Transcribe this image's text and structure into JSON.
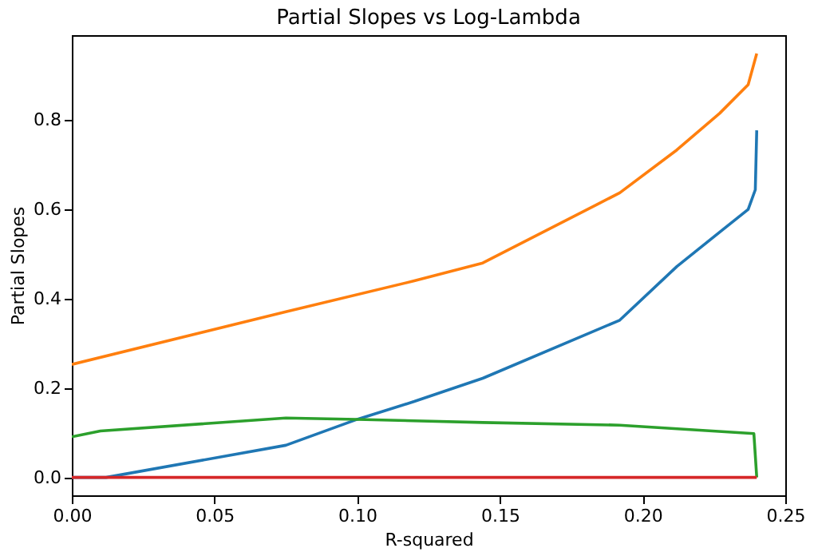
{
  "chart_data": {
    "type": "line",
    "title": "Partial Slopes vs Log-Lambda",
    "xlabel": "R-squared",
    "ylabel": "Partial Slopes",
    "xlim": [
      0,
      0.25
    ],
    "xticks": [
      {
        "value": 0,
        "label": "0.00"
      },
      {
        "value": 0.05,
        "label": "0.05"
      },
      {
        "value": 0.1,
        "label": "0.10"
      },
      {
        "value": 0.15,
        "label": "0.15"
      },
      {
        "value": 0.2,
        "label": "0.20"
      },
      {
        "value": 0.25,
        "label": "0.25"
      }
    ],
    "ylim": [
      -0.04,
      0.99
    ],
    "yticks": [
      {
        "value": 0,
        "label": "0.0"
      },
      0.2,
      0.4,
      0.6,
      0.8
    ],
    "grid": false,
    "legend": false,
    "line_style": "solid",
    "series": [
      {
        "color": "#1f77b4",
        "x": [
          0,
          0.012,
          0.075,
          0.1,
          0.12,
          0.144,
          0.192,
          0.212,
          0.227,
          0.237,
          0.2395,
          0.24
        ],
        "values": [
          0,
          0,
          0.072,
          0.13,
          0.17,
          0.222,
          0.352,
          0.472,
          0.549,
          0.6,
          0.644,
          0.777
        ]
      },
      {
        "color": "#ff7f0e",
        "x": [
          0,
          0.075,
          0.12,
          0.144,
          0.192,
          0.212,
          0.227,
          0.237,
          0.24
        ],
        "values": [
          0.253,
          0.371,
          0.44,
          0.48,
          0.637,
          0.733,
          0.815,
          0.879,
          0.949
        ]
      },
      {
        "color": "#2ca02c",
        "x": [
          0,
          0.01,
          0.075,
          0.1,
          0.144,
          0.192,
          0.239,
          0.24
        ],
        "values": [
          0.091,
          0.104,
          0.133,
          0.13,
          0.123,
          0.117,
          0.098,
          0
        ]
      },
      {
        "color": "#d62728",
        "x": [
          0,
          0.24
        ],
        "values": [
          0,
          0
        ]
      }
    ]
  }
}
